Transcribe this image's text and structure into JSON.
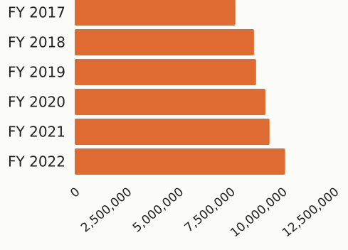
{
  "chart_data": {
    "type": "bar",
    "orientation": "horizontal",
    "categories": [
      "FY 2017",
      "FY 2018",
      "FY 2019",
      "FY 2020",
      "FY 2021",
      "FY 2022"
    ],
    "values": [
      7750000,
      8650000,
      8750000,
      9200000,
      9400000,
      10150000
    ],
    "x_ticks": [
      "0",
      "2,500,000",
      "5,000,000",
      "7,500,000",
      "10,000,000",
      "12,500,000"
    ],
    "xlim": [
      0,
      12500000
    ],
    "bar_color": "#df6a32",
    "title": "",
    "xlabel": "",
    "ylabel": "",
    "grid": false,
    "legend": "none"
  }
}
